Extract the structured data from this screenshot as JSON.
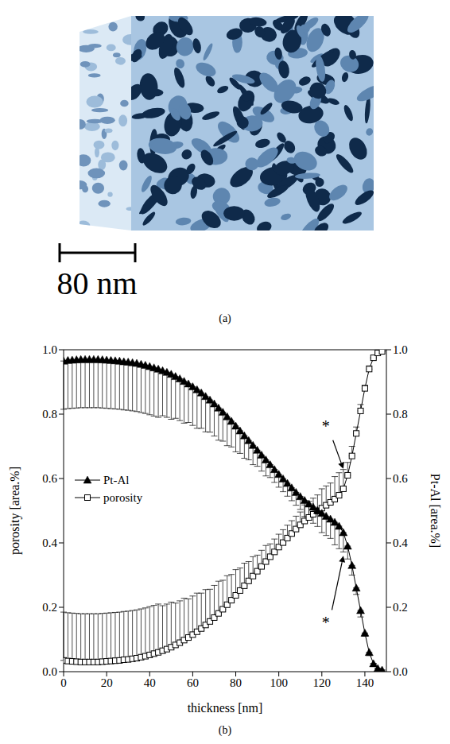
{
  "image_panel": {
    "label": "(a)",
    "scale_bar_label": "80 nm"
  },
  "chart_data": {
    "type": "line",
    "title": "(b)",
    "x_label": "thickness [nm]",
    "y_label": "porosity [area.%]",
    "y2_label": "Pt-Al [area.%]",
    "x": [
      0,
      2,
      4,
      6,
      8,
      10,
      12,
      14,
      16,
      18,
      20,
      22,
      24,
      26,
      28,
      30,
      32,
      34,
      36,
      38,
      40,
      42,
      44,
      46,
      48,
      50,
      52,
      54,
      56,
      58,
      60,
      62,
      64,
      66,
      68,
      70,
      72,
      74,
      76,
      78,
      80,
      82,
      84,
      86,
      88,
      90,
      92,
      94,
      96,
      98,
      100,
      102,
      104,
      106,
      108,
      110,
      112,
      114,
      116,
      118,
      120,
      122,
      124,
      126,
      128,
      130,
      132,
      134,
      136,
      138,
      140,
      142,
      144,
      146,
      148
    ],
    "xlim": [
      0,
      150
    ],
    "xticks": [
      0,
      20,
      40,
      60,
      80,
      100,
      120,
      140
    ],
    "ylim": [
      0,
      1
    ],
    "yticks": [
      {
        "value": 0,
        "label": "0.0"
      },
      {
        "value": 0.2,
        "label": "0.2"
      },
      {
        "value": 0.4,
        "label": "0.4"
      },
      {
        "value": 0.6,
        "label": "0.6"
      },
      {
        "value": 0.8,
        "label": "0.8"
      },
      {
        "value": 1,
        "label": "1.0"
      }
    ],
    "y2lim": [
      0,
      1
    ],
    "y2ticks": [
      {
        "value": 0,
        "label": "0.0"
      },
      {
        "value": 0.2,
        "label": "0.2"
      },
      {
        "value": 0.4,
        "label": "0.4"
      },
      {
        "value": 0.6,
        "label": "0.6"
      },
      {
        "value": 0.8,
        "label": "0.8"
      },
      {
        "value": 1,
        "label": "1.0"
      }
    ],
    "grid": false,
    "legend": "left",
    "series": [
      {
        "name": "Pt-Al",
        "color": "#000000",
        "marker": "triangle",
        "line_style": "solid",
        "axis": "y2",
        "values": [
          0.965,
          0.967,
          0.968,
          0.969,
          0.97,
          0.97,
          0.97,
          0.97,
          0.97,
          0.969,
          0.968,
          0.967,
          0.966,
          0.965,
          0.963,
          0.962,
          0.96,
          0.958,
          0.955,
          0.952,
          0.948,
          0.944,
          0.94,
          0.935,
          0.93,
          0.924,
          0.917,
          0.91,
          0.902,
          0.894,
          0.885,
          0.876,
          0.866,
          0.855,
          0.844,
          0.832,
          0.819,
          0.806,
          0.792,
          0.778,
          0.763,
          0.748,
          0.733,
          0.718,
          0.703,
          0.688,
          0.673,
          0.658,
          0.643,
          0.628,
          0.613,
          0.599,
          0.585,
          0.571,
          0.557,
          0.544,
          0.532,
          0.521,
          0.511,
          0.501,
          0.492,
          0.483,
          0.474,
          0.464,
          0.452,
          0.432,
          0.39,
          0.33,
          0.26,
          0.19,
          0.12,
          0.06,
          0.025,
          0.01,
          0.005
        ],
        "error_lower": [
          0.15,
          0.15,
          0.15,
          0.15,
          0.15,
          0.15,
          0.15,
          0.15,
          0.15,
          0.15,
          0.15,
          0.15,
          0.15,
          0.15,
          0.15,
          0.15,
          0.15,
          0.15,
          0.15,
          0.15,
          0.15,
          0.15,
          0.15,
          0.14,
          0.14,
          0.14,
          0.13,
          0.13,
          0.13,
          0.12,
          0.12,
          0.12,
          0.11,
          0.11,
          0.1,
          0.1,
          0.1,
          0.09,
          0.09,
          0.08,
          0.08,
          0.07,
          0.07,
          0.06,
          0.06,
          0.05,
          0.05,
          0.05,
          0.04,
          0.04,
          0.04,
          0.04,
          0.04,
          0.04,
          0.04,
          0.04,
          0.05,
          0.05,
          0.05,
          0.05,
          0.06,
          0.06,
          0.06,
          0.07,
          0.07,
          0.06,
          0.04,
          0.03,
          0.02,
          0.02,
          0.01,
          0.01,
          0,
          0,
          0
        ]
      },
      {
        "name": "porosity",
        "color": "#000000",
        "marker": "square",
        "line_style": "solid",
        "values": [
          0.035,
          0.033,
          0.032,
          0.031,
          0.03,
          0.03,
          0.03,
          0.03,
          0.03,
          0.031,
          0.032,
          0.033,
          0.034,
          0.035,
          0.037,
          0.038,
          0.04,
          0.042,
          0.045,
          0.048,
          0.052,
          0.056,
          0.06,
          0.065,
          0.07,
          0.076,
          0.083,
          0.09,
          0.098,
          0.106,
          0.115,
          0.124,
          0.134,
          0.145,
          0.156,
          0.168,
          0.181,
          0.194,
          0.208,
          0.222,
          0.237,
          0.252,
          0.267,
          0.282,
          0.297,
          0.312,
          0.327,
          0.342,
          0.357,
          0.372,
          0.387,
          0.401,
          0.415,
          0.429,
          0.443,
          0.456,
          0.468,
          0.479,
          0.489,
          0.499,
          0.508,
          0.517,
          0.526,
          0.536,
          0.548,
          0.568,
          0.61,
          0.67,
          0.74,
          0.81,
          0.88,
          0.94,
          0.975,
          0.99,
          0.995
        ],
        "error_upper": [
          0.15,
          0.15,
          0.15,
          0.15,
          0.15,
          0.15,
          0.15,
          0.15,
          0.15,
          0.15,
          0.15,
          0.15,
          0.15,
          0.15,
          0.15,
          0.15,
          0.15,
          0.15,
          0.15,
          0.15,
          0.15,
          0.15,
          0.15,
          0.14,
          0.14,
          0.14,
          0.13,
          0.13,
          0.13,
          0.12,
          0.12,
          0.12,
          0.11,
          0.11,
          0.1,
          0.1,
          0.1,
          0.09,
          0.09,
          0.08,
          0.08,
          0.07,
          0.07,
          0.06,
          0.06,
          0.05,
          0.05,
          0.05,
          0.04,
          0.04,
          0.04,
          0.04,
          0.04,
          0.04,
          0.04,
          0.04,
          0.05,
          0.05,
          0.05,
          0.05,
          0.06,
          0.06,
          0.06,
          0.07,
          0.07,
          0.06,
          0.04,
          0.03,
          0.02,
          0.02,
          0.01,
          0.01,
          0,
          0,
          0
        ]
      }
    ],
    "annotations": [
      {
        "text": "*",
        "x": 124,
        "y": 0.74,
        "arrow_x": 130,
        "arrow_y": 0.63
      },
      {
        "text": "*",
        "x": 124,
        "y": 0.17,
        "arrow_x": 130,
        "arrow_y": 0.36
      }
    ]
  }
}
